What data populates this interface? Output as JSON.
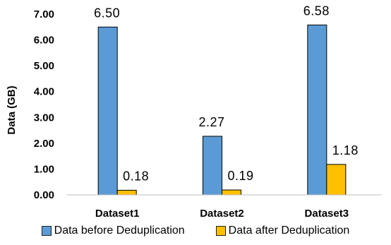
{
  "chart_data": {
    "type": "bar",
    "categories": [
      "Dataset1",
      "Dataset2",
      "Dataset3"
    ],
    "series": [
      {
        "name": "Data before Deduplication",
        "values": [
          6.5,
          2.27,
          6.58
        ],
        "color": "#5b9bd5"
      },
      {
        "name": "Data after Deduplication",
        "values": [
          0.18,
          0.19,
          1.18
        ],
        "color": "#ffc000"
      }
    ],
    "data_labels": [
      [
        "6.50",
        "2.27",
        "6.58"
      ],
      [
        "0.18",
        "0.19",
        "1.18"
      ]
    ],
    "ylabel": "Data (GB)",
    "xlabel": "",
    "ylim": [
      0,
      7
    ],
    "yticks": [
      "0.00",
      "1.00",
      "2.00",
      "3.00",
      "4.00",
      "5.00",
      "6.00",
      "7.00"
    ],
    "grid": false,
    "legend_position": "bottom"
  }
}
